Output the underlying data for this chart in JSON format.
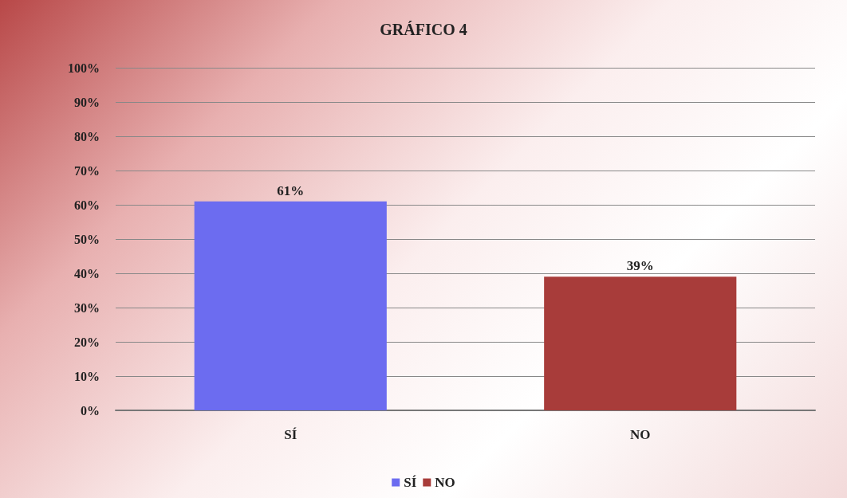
{
  "chart_data": {
    "type": "bar",
    "title": "GRÁFICO 4",
    "categories": [
      "SÍ",
      "NO"
    ],
    "series": [
      {
        "name": "SÍ",
        "color": "#6c6cf0",
        "values": [
          61,
          null
        ],
        "value_labels": [
          "61%",
          null
        ]
      },
      {
        "name": "NO",
        "color": "#a83c3a",
        "values": [
          null,
          39
        ],
        "value_labels": [
          null,
          "39%"
        ]
      }
    ],
    "ylim": [
      0,
      100
    ],
    "yticks": [
      {
        "value": 0,
        "label": "0%"
      },
      {
        "value": 10,
        "label": "10%"
      },
      {
        "value": 20,
        "label": "20%"
      },
      {
        "value": 30,
        "label": "30%"
      },
      {
        "value": 40,
        "label": "40%"
      },
      {
        "value": 50,
        "label": "50%"
      },
      {
        "value": 60,
        "label": "60%"
      },
      {
        "value": 70,
        "label": "70%"
      },
      {
        "value": 80,
        "label": "80%"
      },
      {
        "value": 90,
        "label": "90%"
      },
      {
        "value": 100,
        "label": "100%"
      }
    ],
    "grid": "y",
    "legend": "bottom"
  }
}
